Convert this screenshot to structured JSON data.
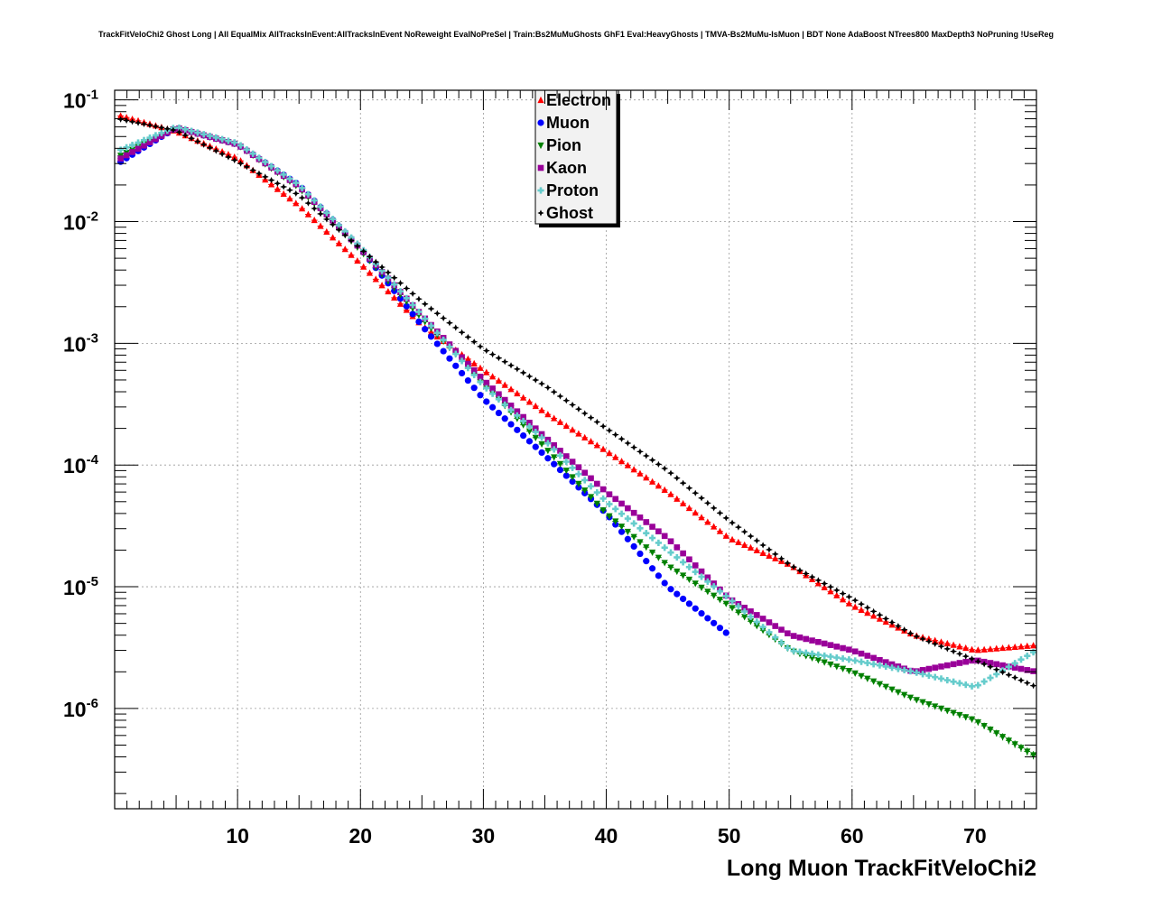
{
  "chart_data": {
    "type": "scatter",
    "title": "TrackFitVeloChi2 Ghost Long | All EqualMix AllTracksInEvent:AllTracksInEvent NoReweight EvalNoPreSel | Train:Bs2MuMuGhosts GhF1 Eval:HeavyGhosts | TMVA-Bs2MuMu-IsMuon | BDT None AdaBoost NTrees800 MaxDepth3 NoPruning !UseReg",
    "xlabel": "Long Muon TrackFitVeloChi2",
    "ylabel": "",
    "xlim": [
      0,
      75
    ],
    "ylim": [
      1.5e-07,
      0.12
    ],
    "y_scale": "log",
    "grid": true,
    "legend_position": "top-center",
    "x_ticks": [
      10,
      20,
      30,
      40,
      50,
      60,
      70
    ],
    "y_ticks": [
      {
        "base": "10",
        "exp": "-1",
        "value": 0.1
      },
      {
        "base": "10",
        "exp": "-2",
        "value": 0.01
      },
      {
        "base": "10",
        "exp": "-3",
        "value": 0.001
      },
      {
        "base": "10",
        "exp": "-4",
        "value": 0.0001
      },
      {
        "base": "10",
        "exp": "-5",
        "value": 1e-05
      },
      {
        "base": "10",
        "exp": "-6",
        "value": 1e-06
      }
    ],
    "series": [
      {
        "name": "Electron",
        "color": "#ff0000",
        "marker": "triangle-up",
        "points": [
          [
            0.25,
            0.075
          ],
          [
            5,
            0.055
          ],
          [
            10,
            0.033
          ],
          [
            15,
            0.0135
          ],
          [
            20,
            0.0045
          ],
          [
            25,
            0.0014
          ],
          [
            30,
            0.0006
          ],
          [
            35,
            0.00027
          ],
          [
            40,
            0.00013
          ],
          [
            45,
            6e-05
          ],
          [
            50,
            2.5e-05
          ],
          [
            55,
            1.5e-05
          ],
          [
            60,
            7e-06
          ],
          [
            65,
            4e-06
          ],
          [
            70,
            3e-06
          ],
          [
            75,
            3.3e-06
          ]
        ]
      },
      {
        "name": "Muon",
        "color": "#0000ff",
        "marker": "circle",
        "points": [
          [
            0.25,
            0.03
          ],
          [
            5,
            0.059
          ],
          [
            10,
            0.043
          ],
          [
            15,
            0.02
          ],
          [
            20,
            0.006
          ],
          [
            25,
            0.0014
          ],
          [
            30,
            0.00035
          ],
          [
            35,
            0.00012
          ],
          [
            40,
            4e-05
          ],
          [
            45,
            1e-05
          ],
          [
            50,
            4e-06
          ]
        ]
      },
      {
        "name": "Pion",
        "color": "#008000",
        "marker": "triangle-down",
        "points": [
          [
            0.25,
            0.034
          ],
          [
            5,
            0.059
          ],
          [
            10,
            0.043
          ],
          [
            15,
            0.019
          ],
          [
            20,
            0.0058
          ],
          [
            25,
            0.0016
          ],
          [
            30,
            0.00047
          ],
          [
            35,
            0.00014
          ],
          [
            40,
            4e-05
          ],
          [
            45,
            1.5e-05
          ],
          [
            50,
            7e-06
          ],
          [
            55,
            3e-06
          ],
          [
            60,
            2e-06
          ],
          [
            65,
            1.2e-06
          ],
          [
            70,
            8e-07
          ],
          [
            75,
            4e-07
          ]
        ]
      },
      {
        "name": "Kaon",
        "color": "#990099",
        "marker": "square",
        "points": [
          [
            0.25,
            0.032
          ],
          [
            5,
            0.059
          ],
          [
            10,
            0.043
          ],
          [
            15,
            0.0195
          ],
          [
            20,
            0.006
          ],
          [
            25,
            0.0017
          ],
          [
            30,
            0.0005
          ],
          [
            35,
            0.00017
          ],
          [
            40,
            6e-05
          ],
          [
            45,
            2.5e-05
          ],
          [
            50,
            8e-06
          ],
          [
            55,
            4e-06
          ],
          [
            60,
            3e-06
          ],
          [
            65,
            2e-06
          ],
          [
            70,
            2.5e-06
          ],
          [
            75,
            2e-06
          ]
        ]
      },
      {
        "name": "Proton",
        "color": "#66cccc",
        "marker": "cross",
        "points": [
          [
            0.25,
            0.038
          ],
          [
            5,
            0.06
          ],
          [
            10,
            0.044
          ],
          [
            15,
            0.02
          ],
          [
            20,
            0.0062
          ],
          [
            25,
            0.0017
          ],
          [
            30,
            0.00045
          ],
          [
            35,
            0.00016
          ],
          [
            40,
            5e-05
          ],
          [
            45,
            2e-05
          ],
          [
            50,
            8e-06
          ],
          [
            55,
            3e-06
          ],
          [
            60,
            2.5e-06
          ],
          [
            65,
            2e-06
          ],
          [
            70,
            1.5e-06
          ],
          [
            75,
            3e-06
          ]
        ]
      },
      {
        "name": "Ghost",
        "color": "#000000",
        "marker": "star",
        "points": [
          [
            0.25,
            0.07
          ],
          [
            5,
            0.056
          ],
          [
            10,
            0.031
          ],
          [
            15,
            0.0165
          ],
          [
            20,
            0.006
          ],
          [
            25,
            0.0022
          ],
          [
            30,
            0.0009
          ],
          [
            35,
            0.00045
          ],
          [
            40,
            0.0002
          ],
          [
            45,
            9e-05
          ],
          [
            50,
            3.5e-05
          ],
          [
            55,
            1.5e-05
          ],
          [
            60,
            8e-06
          ],
          [
            65,
            4e-06
          ],
          [
            70,
            2.5e-06
          ],
          [
            75,
            1.5e-06
          ]
        ]
      }
    ]
  }
}
